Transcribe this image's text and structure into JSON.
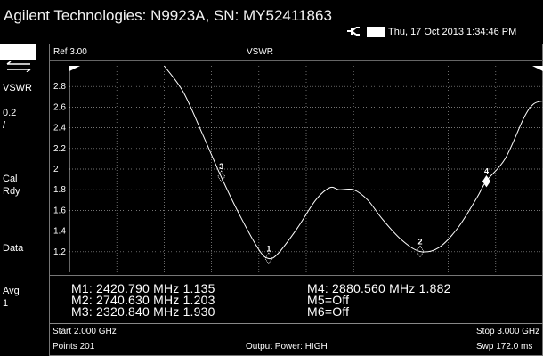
{
  "app": {
    "title": "Agilent Technologies: N9923A, SN: MY52411863",
    "datetime": "Thu, 17 Oct 2013 1:34:46 PM"
  },
  "sidebar": {
    "labels": [
      "VSWR",
      "0.2\n/",
      "Cal\nRdy",
      "Data",
      "Avg\n1"
    ]
  },
  "trace_header": {
    "ref": "Ref 3.00",
    "mode": "VSWR"
  },
  "markers": {
    "m1": "M1:  2420.790 MHz   1.135",
    "m2": "M2:  2740.630 MHz   1.203",
    "m3": "M3:  2320.840 MHz   1.930",
    "m4": "M4:  2880.560 MHz   1.882",
    "m5": "M5=Off",
    "m6": "M6=Off"
  },
  "footer": {
    "start": "Start 2.000 GHz",
    "stop": "Stop 3.000 GHz",
    "points": "Points 201",
    "output_power": "Output Power: HIGH",
    "sweep": "Swp 172.0 ms"
  },
  "chart_data": {
    "type": "line",
    "title": "VSWR",
    "x_range_ghz": [
      2.0,
      3.0
    ],
    "ylim": [
      1.0,
      3.0
    ],
    "yticks": [
      "2.8",
      "2.6",
      "2.4",
      "2.2",
      "2",
      "1.8",
      "1.6",
      "1.4",
      "1.2"
    ],
    "grid": true,
    "series": [
      {
        "x": [
          2.2,
          2.24,
          2.28,
          2.32,
          2.36,
          2.4,
          2.42,
          2.44,
          2.48,
          2.52,
          2.55,
          2.57,
          2.6,
          2.63,
          2.66,
          2.7,
          2.74,
          2.78,
          2.82,
          2.86,
          2.88,
          2.92,
          2.96,
          2.98,
          3.0
        ],
        "y": [
          3.0,
          2.75,
          2.35,
          1.93,
          1.55,
          1.22,
          1.135,
          1.18,
          1.42,
          1.7,
          1.82,
          1.8,
          1.8,
          1.7,
          1.52,
          1.32,
          1.203,
          1.24,
          1.43,
          1.72,
          1.882,
          2.1,
          2.5,
          2.63,
          2.66
        ]
      }
    ],
    "markers": [
      {
        "label": "1",
        "x": 2.42079,
        "y": 1.135
      },
      {
        "label": "2",
        "x": 2.74063,
        "y": 1.203
      },
      {
        "label": "3",
        "x": 2.32084,
        "y": 1.93
      },
      {
        "label": "4",
        "x": 2.88056,
        "y": 1.882
      }
    ]
  },
  "colors": {
    "background": "#000000",
    "trace": "#ffffff",
    "grid": "#9a9a9a"
  }
}
